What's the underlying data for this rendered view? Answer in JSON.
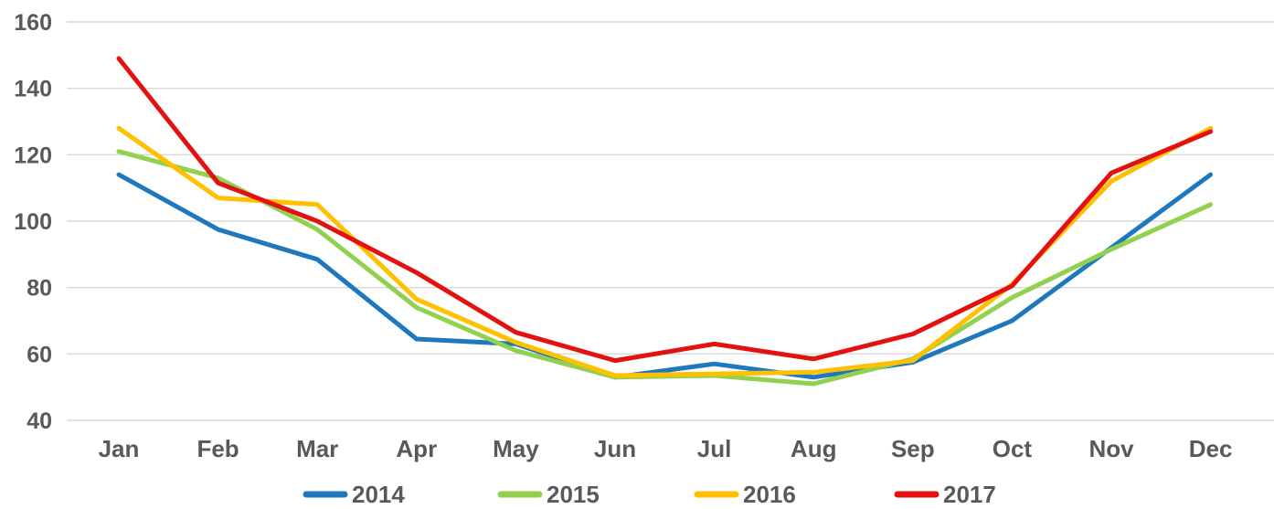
{
  "chart_data": {
    "type": "line",
    "title": "",
    "categories": [
      "Jan",
      "Feb",
      "Mar",
      "Apr",
      "May",
      "Jun",
      "Jul",
      "Aug",
      "Sep",
      "Oct",
      "Nov",
      "Dec"
    ],
    "series": [
      {
        "name": "2014",
        "color": "#1F78BE",
        "values": [
          114,
          97.5,
          88.5,
          64.5,
          63,
          53,
          57,
          53,
          57.5,
          70,
          92,
          114
        ]
      },
      {
        "name": "2015",
        "color": "#92D050",
        "values": [
          121,
          113,
          97.5,
          74,
          61,
          53,
          53.5,
          51,
          58.5,
          77,
          91.5,
          105
        ]
      },
      {
        "name": "2016",
        "color": "#FFC000",
        "values": [
          128,
          107,
          105,
          76.5,
          63.5,
          53.5,
          54,
          54.5,
          58,
          81,
          112,
          128
        ]
      },
      {
        "name": "2017",
        "color": "#E41111",
        "values": [
          149,
          111.5,
          100,
          84.5,
          66.5,
          58,
          63,
          58.5,
          66,
          80.5,
          114.5,
          127
        ]
      }
    ],
    "xlabel": "",
    "ylabel": "",
    "ylim": [
      40,
      160
    ],
    "yticks": [
      40,
      60,
      80,
      100,
      120,
      140,
      160
    ],
    "grid": true,
    "legend_position": "bottom",
    "legend_entries": [
      "2014",
      "2015",
      "2016",
      "2017"
    ],
    "text_color": "#595959",
    "gridline_color": "#D9D9D9",
    "background_color": "#FFFFFF"
  }
}
